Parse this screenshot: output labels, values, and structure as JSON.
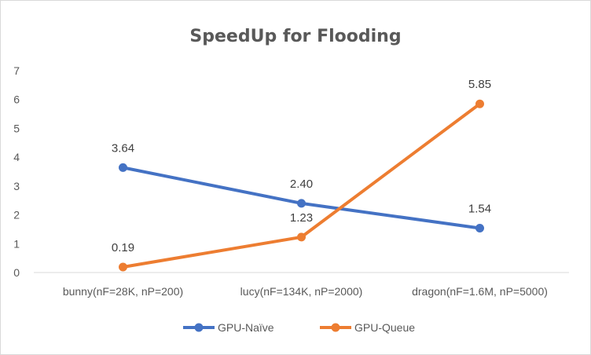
{
  "chart_data": {
    "type": "line",
    "title": "SpeedUp for Flooding",
    "categories": [
      "bunny(nF=28K, nP=200)",
      "lucy(nF=134K, nP=2000)",
      "dragon(nF=1.6M, nP=5000)"
    ],
    "series": [
      {
        "name": "GPU-Naïve",
        "values": [
          3.64,
          2.4,
          1.54
        ],
        "labels": [
          "3.64",
          "2.40",
          "1.54"
        ],
        "color": "#4472C4"
      },
      {
        "name": "GPU-Queue",
        "values": [
          0.19,
          1.23,
          5.85
        ],
        "labels": [
          "0.19",
          "1.23",
          "5.85"
        ],
        "color": "#ED7D31"
      }
    ],
    "yticks": [
      "0",
      "1",
      "2",
      "3",
      "4",
      "5",
      "6",
      "7"
    ],
    "ylim": [
      0,
      7
    ],
    "xlabel": "",
    "ylabel": "",
    "grid": false,
    "legend": "bottom",
    "axis_color": "#d9d9d9"
  }
}
